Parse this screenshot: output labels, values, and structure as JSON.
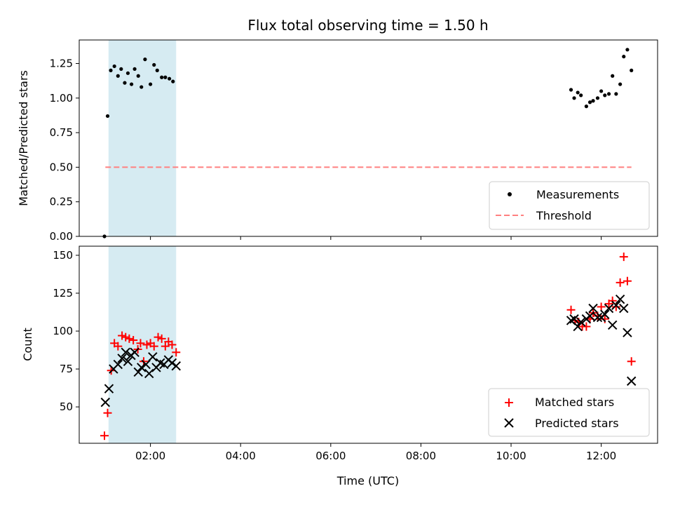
{
  "chart_data": [
    {
      "type": "scatter",
      "panel": "top",
      "title": "Flux total observing time = 1.50 h",
      "ylabel": "Matched/Predicted stars",
      "xlabel": "",
      "xlim": [
        0.42,
        13.25
      ],
      "ylim": [
        0,
        1.42
      ],
      "yticks": [
        0.0,
        0.25,
        0.5,
        0.75,
        1.0,
        1.25
      ],
      "ytick_labels": [
        "0.00",
        "0.25",
        "0.50",
        "0.75",
        "1.00",
        "1.25"
      ],
      "xticks": [
        2,
        4,
        6,
        8,
        10,
        12
      ],
      "shaded_region": {
        "x_start": 1.07,
        "x_end": 2.57,
        "color": "#add8e6"
      },
      "legend_position": "lower right",
      "series": [
        {
          "name": "Measurements",
          "style": "dot",
          "color": "#000000",
          "points": [
            [
              0.98,
              0.0
            ],
            [
              1.05,
              0.87
            ],
            [
              1.12,
              1.2
            ],
            [
              1.2,
              1.23
            ],
            [
              1.28,
              1.16
            ],
            [
              1.35,
              1.21
            ],
            [
              1.43,
              1.11
            ],
            [
              1.5,
              1.18
            ],
            [
              1.58,
              1.1
            ],
            [
              1.65,
              1.21
            ],
            [
              1.73,
              1.16
            ],
            [
              1.8,
              1.08
            ],
            [
              1.88,
              1.28
            ],
            [
              2.0,
              1.1
            ],
            [
              2.08,
              1.24
            ],
            [
              2.15,
              1.2
            ],
            [
              2.25,
              1.15
            ],
            [
              2.33,
              1.15
            ],
            [
              2.42,
              1.14
            ],
            [
              2.5,
              1.12
            ],
            [
              11.33,
              1.06
            ],
            [
              11.4,
              1.0
            ],
            [
              11.48,
              1.04
            ],
            [
              11.55,
              1.02
            ],
            [
              11.67,
              0.94
            ],
            [
              11.75,
              0.97
            ],
            [
              11.82,
              0.98
            ],
            [
              11.92,
              1.0
            ],
            [
              12.0,
              1.05
            ],
            [
              12.08,
              1.02
            ],
            [
              12.17,
              1.03
            ],
            [
              12.25,
              1.16
            ],
            [
              12.33,
              1.03
            ],
            [
              12.42,
              1.1
            ],
            [
              12.5,
              1.3
            ],
            [
              12.58,
              1.35
            ],
            [
              12.67,
              1.2
            ]
          ]
        },
        {
          "name": "Threshold",
          "style": "dashed",
          "color": "#ff8080",
          "points": [
            [
              1.0,
              0.5
            ],
            [
              12.67,
              0.5
            ]
          ]
        }
      ]
    },
    {
      "type": "scatter",
      "panel": "bottom",
      "title": "",
      "ylabel": "Count",
      "xlabel": "Time (UTC)",
      "xlim": [
        0.42,
        13.25
      ],
      "ylim": [
        26,
        156
      ],
      "yticks": [
        50,
        75,
        100,
        125,
        150
      ],
      "ytick_labels": [
        "50",
        "75",
        "100",
        "125",
        "150"
      ],
      "xticks": [
        2,
        4,
        6,
        8,
        10,
        12
      ],
      "xtick_labels": [
        "02:00",
        "04:00",
        "06:00",
        "08:00",
        "10:00",
        "12:00"
      ],
      "shaded_region": {
        "x_start": 1.07,
        "x_end": 2.57,
        "color": "#add8e6"
      },
      "legend_position": "lower right",
      "series": [
        {
          "name": "Matched stars",
          "style": "plus",
          "color": "#ff0000",
          "points": [
            [
              0.98,
              31
            ],
            [
              1.05,
              46
            ],
            [
              1.13,
              74
            ],
            [
              1.2,
              92
            ],
            [
              1.28,
              90
            ],
            [
              1.37,
              97
            ],
            [
              1.45,
              96
            ],
            [
              1.53,
              95
            ],
            [
              1.62,
              94
            ],
            [
              1.72,
              88
            ],
            [
              1.78,
              92
            ],
            [
              1.85,
              80
            ],
            [
              1.92,
              91
            ],
            [
              2.0,
              92
            ],
            [
              2.08,
              90
            ],
            [
              2.17,
              96
            ],
            [
              2.25,
              95
            ],
            [
              2.33,
              90
            ],
            [
              2.4,
              93
            ],
            [
              2.48,
              91
            ],
            [
              2.57,
              86
            ],
            [
              11.33,
              114
            ],
            [
              11.42,
              107
            ],
            [
              11.5,
              106
            ],
            [
              11.58,
              103
            ],
            [
              11.67,
              103
            ],
            [
              11.75,
              108
            ],
            [
              11.82,
              112
            ],
            [
              11.92,
              110
            ],
            [
              12.0,
              116
            ],
            [
              12.08,
              108
            ],
            [
              12.17,
              118
            ],
            [
              12.25,
              120
            ],
            [
              12.33,
              116
            ],
            [
              12.42,
              132
            ],
            [
              12.5,
              149
            ],
            [
              12.58,
              133
            ],
            [
              12.67,
              80
            ]
          ]
        },
        {
          "name": "Predicted stars",
          "style": "x",
          "color": "#000000",
          "points": [
            [
              1.0,
              53
            ],
            [
              1.08,
              62
            ],
            [
              1.18,
              75
            ],
            [
              1.28,
              78
            ],
            [
              1.37,
              82
            ],
            [
              1.45,
              86
            ],
            [
              1.5,
              80
            ],
            [
              1.57,
              84
            ],
            [
              1.65,
              86
            ],
            [
              1.73,
              73
            ],
            [
              1.8,
              76
            ],
            [
              1.9,
              78
            ],
            [
              1.97,
              72
            ],
            [
              2.05,
              83
            ],
            [
              2.13,
              76
            ],
            [
              2.22,
              79
            ],
            [
              2.3,
              78
            ],
            [
              2.4,
              81
            ],
            [
              2.48,
              79
            ],
            [
              2.57,
              77
            ],
            [
              11.33,
              107
            ],
            [
              11.4,
              108
            ],
            [
              11.48,
              103
            ],
            [
              11.55,
              106
            ],
            [
              11.67,
              108
            ],
            [
              11.75,
              110
            ],
            [
              11.82,
              115
            ],
            [
              11.92,
              109
            ],
            [
              12.0,
              109
            ],
            [
              12.08,
              111
            ],
            [
              12.17,
              115
            ],
            [
              12.25,
              104
            ],
            [
              12.33,
              117
            ],
            [
              12.42,
              121
            ],
            [
              12.5,
              115
            ],
            [
              12.58,
              99
            ],
            [
              12.67,
              67
            ]
          ]
        }
      ]
    }
  ]
}
